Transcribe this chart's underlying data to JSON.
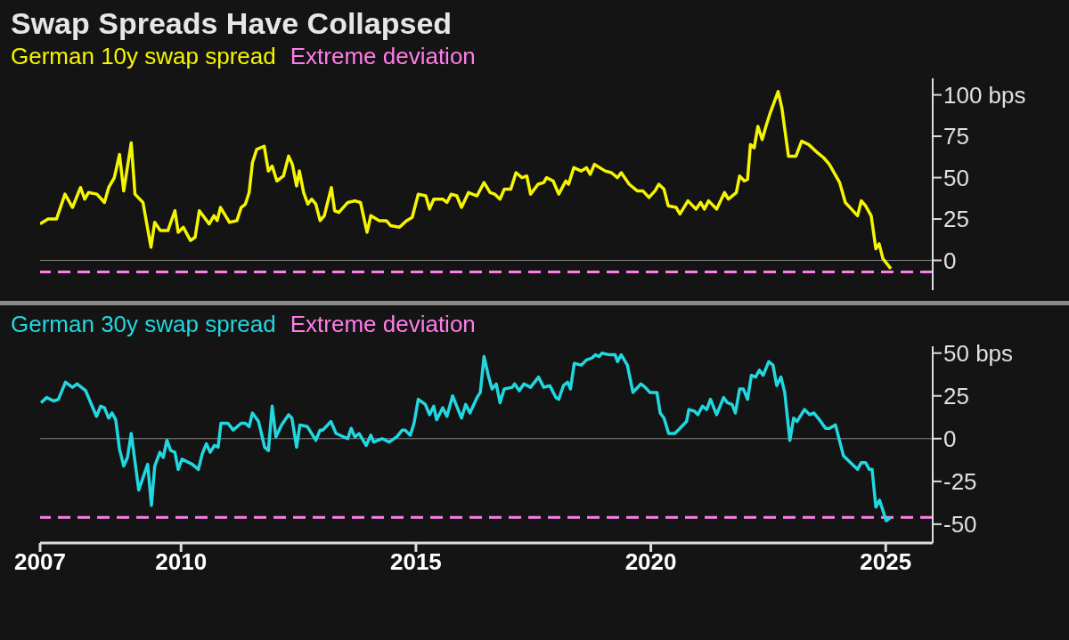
{
  "chart_data": [
    {
      "type": "line",
      "title": "Swap Spreads Have Collapsed",
      "legend": "top left",
      "tick_labels": "y",
      "xlim": [
        2007,
        2026
      ],
      "xticks": [
        2007,
        2010,
        2015,
        2020,
        2025
      ],
      "ylim": [
        -18,
        110
      ],
      "yticks": [
        {
          "value": 100,
          "label": "100 bps"
        },
        75,
        50,
        25,
        0
      ],
      "ref_lines": [
        {
          "axis": "y",
          "value": 0,
          "color": "#8a8a8a",
          "line_style": "solid"
        },
        {
          "axis": "y",
          "value": -7,
          "label": "Extreme deviation",
          "color": "#ff7de9",
          "line_style": "dashed"
        }
      ],
      "series": [
        {
          "name": "German 10y swap spread",
          "color": "#f5f500",
          "x": [
            2007.0,
            2007.17,
            2007.35,
            2007.53,
            2007.69,
            2007.86,
            2007.95,
            2008.03,
            2008.21,
            2008.37,
            2008.46,
            2008.58,
            2008.69,
            2008.78,
            2008.94,
            2009.02,
            2009.19,
            2009.36,
            2009.44,
            2009.56,
            2009.72,
            2009.87,
            2009.94,
            2010.05,
            2010.2,
            2010.3,
            2010.39,
            2010.6,
            2010.7,
            2010.77,
            2010.84,
            2011.03,
            2011.19,
            2011.28,
            2011.37,
            2011.45,
            2011.52,
            2011.61,
            2011.77,
            2011.86,
            2011.94,
            2012.04,
            2012.18,
            2012.29,
            2012.37,
            2012.46,
            2012.52,
            2012.61,
            2012.7,
            2012.78,
            2012.87,
            2012.96,
            2013.05,
            2013.2,
            2013.27,
            2013.36,
            2013.55,
            2013.7,
            2013.82,
            2013.96,
            2014.04,
            2014.22,
            2014.37,
            2014.46,
            2014.65,
            2014.8,
            2014.92,
            2015.05,
            2015.21,
            2015.29,
            2015.38,
            2015.57,
            2015.66,
            2015.75,
            2015.87,
            2015.97,
            2016.12,
            2016.3,
            2016.45,
            2016.58,
            2016.68,
            2016.79,
            2016.88,
            2017.02,
            2017.13,
            2017.26,
            2017.36,
            2017.44,
            2017.6,
            2017.72,
            2017.78,
            2017.92,
            2018.04,
            2018.19,
            2018.25,
            2018.36,
            2018.52,
            2018.63,
            2018.71,
            2018.8,
            2019.03,
            2019.16,
            2019.29,
            2019.37,
            2019.54,
            2019.71,
            2019.83,
            2019.96,
            2020.09,
            2020.17,
            2020.28,
            2020.37,
            2020.54,
            2020.62,
            2020.79,
            2020.96,
            2021.06,
            2021.14,
            2021.23,
            2021.4,
            2021.57,
            2021.65,
            2021.82,
            2021.89,
            2021.99,
            2022.06,
            2022.12,
            2022.2,
            2022.28,
            2022.37,
            2022.45,
            2022.54,
            2022.71,
            2022.79,
            2022.93,
            2023.09,
            2023.21,
            2023.36,
            2023.55,
            2023.68,
            2023.8,
            2024.02,
            2024.14,
            2024.27,
            2024.4,
            2024.48,
            2024.57,
            2024.69,
            2024.79,
            2024.86,
            2024.94,
            2025.11
          ],
          "values": [
            22,
            25,
            25,
            40,
            32,
            44,
            37,
            41,
            40,
            35,
            44,
            50,
            64,
            42,
            71,
            40,
            35,
            8,
            23,
            18,
            18,
            30,
            17,
            20,
            12,
            14,
            30,
            22,
            27,
            24,
            32,
            23,
            24,
            32,
            34,
            41,
            59,
            67,
            69,
            54,
            57,
            48,
            51,
            63,
            58,
            45,
            54,
            41,
            34,
            37,
            34,
            24,
            27,
            44,
            30,
            29,
            35,
            36,
            35,
            17,
            27,
            24,
            24,
            21,
            20,
            24,
            26,
            40,
            39,
            31,
            37,
            37,
            35,
            40,
            39,
            32,
            41,
            39,
            47,
            41,
            40,
            37,
            43,
            43,
            53,
            50,
            51,
            40,
            46,
            47,
            50,
            48,
            40,
            48,
            46,
            56,
            54,
            56,
            52,
            58,
            54,
            53,
            50,
            53,
            46,
            42,
            42,
            38,
            42,
            46,
            43,
            33,
            32,
            28,
            36,
            31,
            35,
            31,
            36,
            31,
            41,
            37,
            41,
            51,
            48,
            49,
            70,
            68,
            81,
            73,
            81,
            89,
            102,
            92,
            63,
            63,
            72,
            70,
            65,
            62,
            58,
            47,
            35,
            31,
            27,
            36,
            33,
            27,
            7,
            10,
            1,
            -5
          ]
        }
      ]
    },
    {
      "type": "line",
      "legend": "top left",
      "xlim": [
        2007,
        2026
      ],
      "xticks": [
        2007,
        2010,
        2015,
        2020,
        2025
      ],
      "ylim": [
        -61,
        54
      ],
      "yticks": [
        {
          "value": 50,
          "label": "50 bps"
        },
        25,
        0,
        -25,
        -50
      ],
      "ref_lines": [
        {
          "axis": "y",
          "value": 0,
          "color": "#8a8a8a",
          "line_style": "solid"
        },
        {
          "axis": "y",
          "value": -46,
          "label": "Extreme deviation",
          "color": "#ff7de9",
          "line_style": "dashed"
        }
      ],
      "series": [
        {
          "name": "German 30y swap spread",
          "color": "#22d8e0",
          "x": [
            2007.02,
            2007.14,
            2007.29,
            2007.39,
            2007.54,
            2007.69,
            2007.79,
            2007.97,
            2008.2,
            2008.29,
            2008.37,
            2008.46,
            2008.53,
            2008.61,
            2008.69,
            2008.78,
            2008.86,
            2008.94,
            2009.1,
            2009.29,
            2009.37,
            2009.44,
            2009.55,
            2009.62,
            2009.7,
            2009.78,
            2009.87,
            2009.94,
            2010.02,
            2010.24,
            2010.37,
            2010.45,
            2010.54,
            2010.62,
            2010.71,
            2010.79,
            2010.85,
            2011.0,
            2011.11,
            2011.28,
            2011.37,
            2011.45,
            2011.52,
            2011.65,
            2011.78,
            2011.86,
            2011.94,
            2012.02,
            2012.14,
            2012.29,
            2012.36,
            2012.46,
            2012.53,
            2012.69,
            2012.87,
            2012.96,
            2013.02,
            2013.19,
            2013.3,
            2013.55,
            2013.62,
            2013.7,
            2013.79,
            2013.94,
            2014.04,
            2014.1,
            2014.28,
            2014.43,
            2014.59,
            2014.71,
            2014.77,
            2014.88,
            2014.96,
            2015.05,
            2015.2,
            2015.29,
            2015.38,
            2015.44,
            2015.57,
            2015.66,
            2015.78,
            2015.97,
            2016.06,
            2016.15,
            2016.3,
            2016.37,
            2016.45,
            2016.54,
            2016.62,
            2016.71,
            2016.79,
            2016.88,
            2017.05,
            2017.1,
            2017.2,
            2017.3,
            2017.44,
            2017.61,
            2017.72,
            2017.85,
            2017.98,
            2018.04,
            2018.14,
            2018.23,
            2018.29,
            2018.37,
            2018.52,
            2018.63,
            2018.74,
            2018.82,
            2018.9,
            2018.96,
            2019.12,
            2019.24,
            2019.29,
            2019.37,
            2019.5,
            2019.62,
            2019.79,
            2019.88,
            2019.98,
            2020.13,
            2020.2,
            2020.28,
            2020.38,
            2020.51,
            2020.62,
            2020.76,
            2020.81,
            2020.93,
            2021.0,
            2021.1,
            2021.19,
            2021.27,
            2021.4,
            2021.55,
            2021.63,
            2021.73,
            2021.8,
            2021.89,
            2021.97,
            2022.06,
            2022.14,
            2022.23,
            2022.31,
            2022.39,
            2022.51,
            2022.6,
            2022.68,
            2022.77,
            2022.85,
            2022.96,
            2023.04,
            2023.11,
            2023.27,
            2023.38,
            2023.47,
            2023.59,
            2023.72,
            2023.8,
            2023.93,
            2024.1,
            2024.25,
            2024.4,
            2024.48,
            2024.57,
            2024.65,
            2024.71,
            2024.79,
            2024.87,
            2025.01,
            2025.11
          ],
          "values": [
            21,
            24,
            22,
            23,
            33,
            30,
            32,
            28,
            13,
            19,
            18,
            12,
            15,
            11,
            -6,
            -16,
            -11,
            3,
            -30,
            -15,
            -39,
            -16,
            -8,
            -11,
            -1,
            -7,
            -8,
            -18,
            -12,
            -15,
            -18,
            -9,
            -3,
            -8,
            -4,
            -5,
            9,
            9,
            5,
            9,
            9,
            7,
            15,
            10,
            -5,
            -7,
            19,
            1,
            8,
            14,
            12,
            -5,
            8,
            7,
            -1,
            5,
            5,
            10,
            3,
            0,
            6,
            1,
            3,
            -4,
            2,
            -2,
            0,
            -2,
            1,
            5,
            5,
            2,
            9,
            23,
            20,
            14,
            19,
            11,
            18,
            13,
            25,
            12,
            20,
            15,
            24,
            27,
            48,
            37,
            29,
            32,
            21,
            29,
            30,
            32,
            28,
            32,
            30,
            36,
            30,
            31,
            24,
            23,
            31,
            33,
            29,
            44,
            43,
            46,
            47,
            49,
            48,
            50,
            49,
            49,
            45,
            49,
            43,
            27,
            32,
            30,
            27,
            27,
            15,
            12,
            3,
            3,
            6,
            10,
            17,
            16,
            14,
            19,
            17,
            23,
            14,
            24,
            21,
            20,
            15,
            29,
            29,
            23,
            37,
            36,
            40,
            37,
            45,
            43,
            31,
            36,
            27,
            -1,
            12,
            10,
            17,
            14,
            15,
            11,
            6,
            6,
            8,
            -10,
            -14,
            -18,
            -14,
            -14,
            -18,
            -18,
            -40,
            -36,
            -48,
            -46
          ]
        }
      ]
    }
  ]
}
